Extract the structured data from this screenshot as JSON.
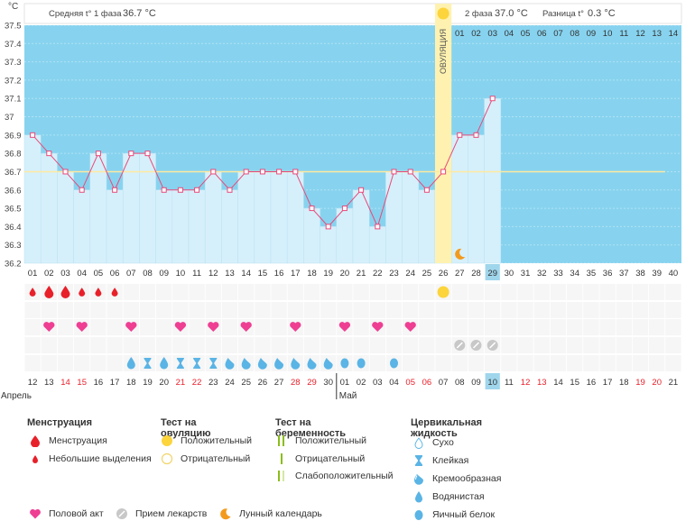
{
  "header": {
    "phase1_label": "Средняя t° 1 фаза",
    "phase1_value": "36.7 °C",
    "phase2_label": "2 фаза",
    "phase2_value": "37.0 °C",
    "diff_label": "Разница t°",
    "diff_value": "0.3 °C",
    "unit": "°C",
    "ovulation_label": "ОВУЛЯЦИЯ"
  },
  "chart_data": {
    "type": "line",
    "ylim": [
      36.2,
      37.5
    ],
    "yticks": [
      "36.2",
      "36.3",
      "36.4",
      "36.5",
      "36.6",
      "36.7",
      "36.8",
      "36.9",
      "37",
      "37.1",
      "37.2",
      "37.3",
      "37.4",
      "37.5"
    ],
    "coverline": 36.7,
    "ovulation_day": 26,
    "current_day": 29,
    "phase2_day_labels": [
      "01",
      "02",
      "03",
      "04",
      "05",
      "06",
      "07",
      "08",
      "09",
      "10",
      "11",
      "12",
      "13",
      "14"
    ],
    "cycle_days": [
      "01",
      "02",
      "03",
      "04",
      "05",
      "06",
      "07",
      "08",
      "09",
      "10",
      "11",
      "12",
      "13",
      "14",
      "15",
      "16",
      "17",
      "18",
      "19",
      "20",
      "21",
      "22",
      "23",
      "24",
      "25",
      "26",
      "27",
      "28",
      "29",
      "30",
      "31",
      "32",
      "33",
      "34",
      "35",
      "36",
      "37",
      "38",
      "39",
      "40"
    ],
    "temperatures": [
      36.9,
      36.8,
      36.7,
      36.6,
      36.8,
      36.6,
      36.8,
      36.8,
      36.6,
      36.6,
      36.6,
      36.7,
      36.6,
      36.7,
      36.7,
      36.7,
      36.7,
      36.5,
      36.4,
      36.5,
      36.6,
      36.4,
      36.7,
      36.7,
      36.6,
      36.7,
      36.9,
      36.9,
      37.1
    ],
    "dates": [
      "12",
      "13",
      "14",
      "15",
      "16",
      "17",
      "18",
      "19",
      "20",
      "21",
      "22",
      "23",
      "24",
      "25",
      "26",
      "27",
      "28",
      "29",
      "30",
      "01",
      "02",
      "03",
      "04",
      "05",
      "06",
      "07",
      "08",
      "09",
      "10",
      "11",
      "12",
      "13",
      "14",
      "15",
      "16",
      "17",
      "18",
      "19",
      "20",
      "21"
    ],
    "weekend_date_indices": [
      2,
      3,
      9,
      10,
      16,
      17,
      23,
      24,
      30,
      31,
      37,
      38
    ],
    "month_labels": [
      {
        "name": "Апрель",
        "start": 0
      },
      {
        "name": "Май",
        "start": 19
      }
    ],
    "menstruation": [
      {
        "day": 1,
        "kind": "small"
      },
      {
        "day": 2,
        "kind": "large"
      },
      {
        "day": 3,
        "kind": "large"
      },
      {
        "day": 4,
        "kind": "small"
      },
      {
        "day": 5,
        "kind": "small"
      },
      {
        "day": 6,
        "kind": "small"
      }
    ],
    "intercourse_days": [
      2,
      4,
      7,
      10,
      12,
      14,
      17,
      20,
      22,
      24
    ],
    "ovulation_test_positive_day": 26,
    "medication_days": [
      27,
      28,
      29
    ],
    "moon_day": 27,
    "cervical": [
      {
        "day": 7,
        "kind": "water"
      },
      {
        "day": 8,
        "kind": "sticky"
      },
      {
        "day": 9,
        "kind": "water"
      },
      {
        "day": 10,
        "kind": "sticky"
      },
      {
        "day": 11,
        "kind": "sticky"
      },
      {
        "day": 12,
        "kind": "sticky"
      },
      {
        "day": 13,
        "kind": "creamy"
      },
      {
        "day": 14,
        "kind": "creamy"
      },
      {
        "day": 15,
        "kind": "creamy"
      },
      {
        "day": 16,
        "kind": "creamy"
      },
      {
        "day": 17,
        "kind": "creamy"
      },
      {
        "day": 18,
        "kind": "creamy"
      },
      {
        "day": 19,
        "kind": "creamy"
      },
      {
        "day": 20,
        "kind": "eggwhite"
      },
      {
        "day": 21,
        "kind": "eggwhite"
      },
      {
        "day": 23,
        "kind": "eggwhite"
      }
    ]
  },
  "legend": {
    "menstruation_title": "Менструация",
    "menstruation": "Менструация",
    "spotting": "Небольшие выделения",
    "ovulation_test_title": "Тест на овуляцию",
    "positive": "Положительный",
    "negative": "Отрицательный",
    "pregnancy_test_title": "Тест на беременность",
    "preg_positive": "Положительный",
    "preg_negative": "Отрицательный",
    "preg_weak": "Слабоположительный",
    "cervical_title": "Цервикальная жидкость",
    "dry": "Сухо",
    "sticky": "Клейкая",
    "creamy": "Кремообразная",
    "watery": "Водянистая",
    "eggwhite": "Яичный белок",
    "intercourse": "Половой акт",
    "medication": "Прием лекарств",
    "moon": "Лунный календарь"
  },
  "colors": {
    "sky": "#87d3ef",
    "bar": "#d6f0fb",
    "line": "#e94a7a",
    "cover": "#ffe9a0",
    "ovul_band": "#fff2b0",
    "today": "#9fd6ec",
    "red": "#e8202a",
    "pink": "#ee3f93",
    "blue": "#5ab4e5",
    "gray": "#c8c8c8"
  }
}
